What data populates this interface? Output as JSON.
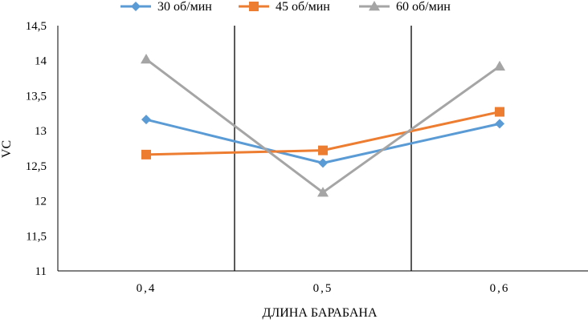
{
  "chart_data": {
    "type": "line",
    "title": "",
    "xlabel": "ДЛИНА БАРАБАНА",
    "ylabel": "VC",
    "categories": [
      "0,4",
      "0,5",
      "0,6"
    ],
    "ylim": [
      11,
      14.5
    ],
    "yticks": [
      "11",
      "11,5",
      "12",
      "12,5",
      "13",
      "13,5",
      "14",
      "14,5"
    ],
    "ytick_values": [
      11,
      11.5,
      12,
      12.5,
      13,
      13.5,
      14,
      14.5
    ],
    "legend_position": "top",
    "series": [
      {
        "name": "30 об/мин",
        "values": [
          13.16,
          12.54,
          13.1
        ],
        "color": "#5B9BD5",
        "marker": "diamond"
      },
      {
        "name": "45 об/мин",
        "values": [
          12.66,
          12.72,
          13.27
        ],
        "color": "#ED7D31",
        "marker": "square"
      },
      {
        "name": "60 об/мин",
        "values": [
          14.02,
          12.12,
          13.92
        ],
        "color": "#A5A5A5",
        "marker": "triangle"
      }
    ]
  }
}
